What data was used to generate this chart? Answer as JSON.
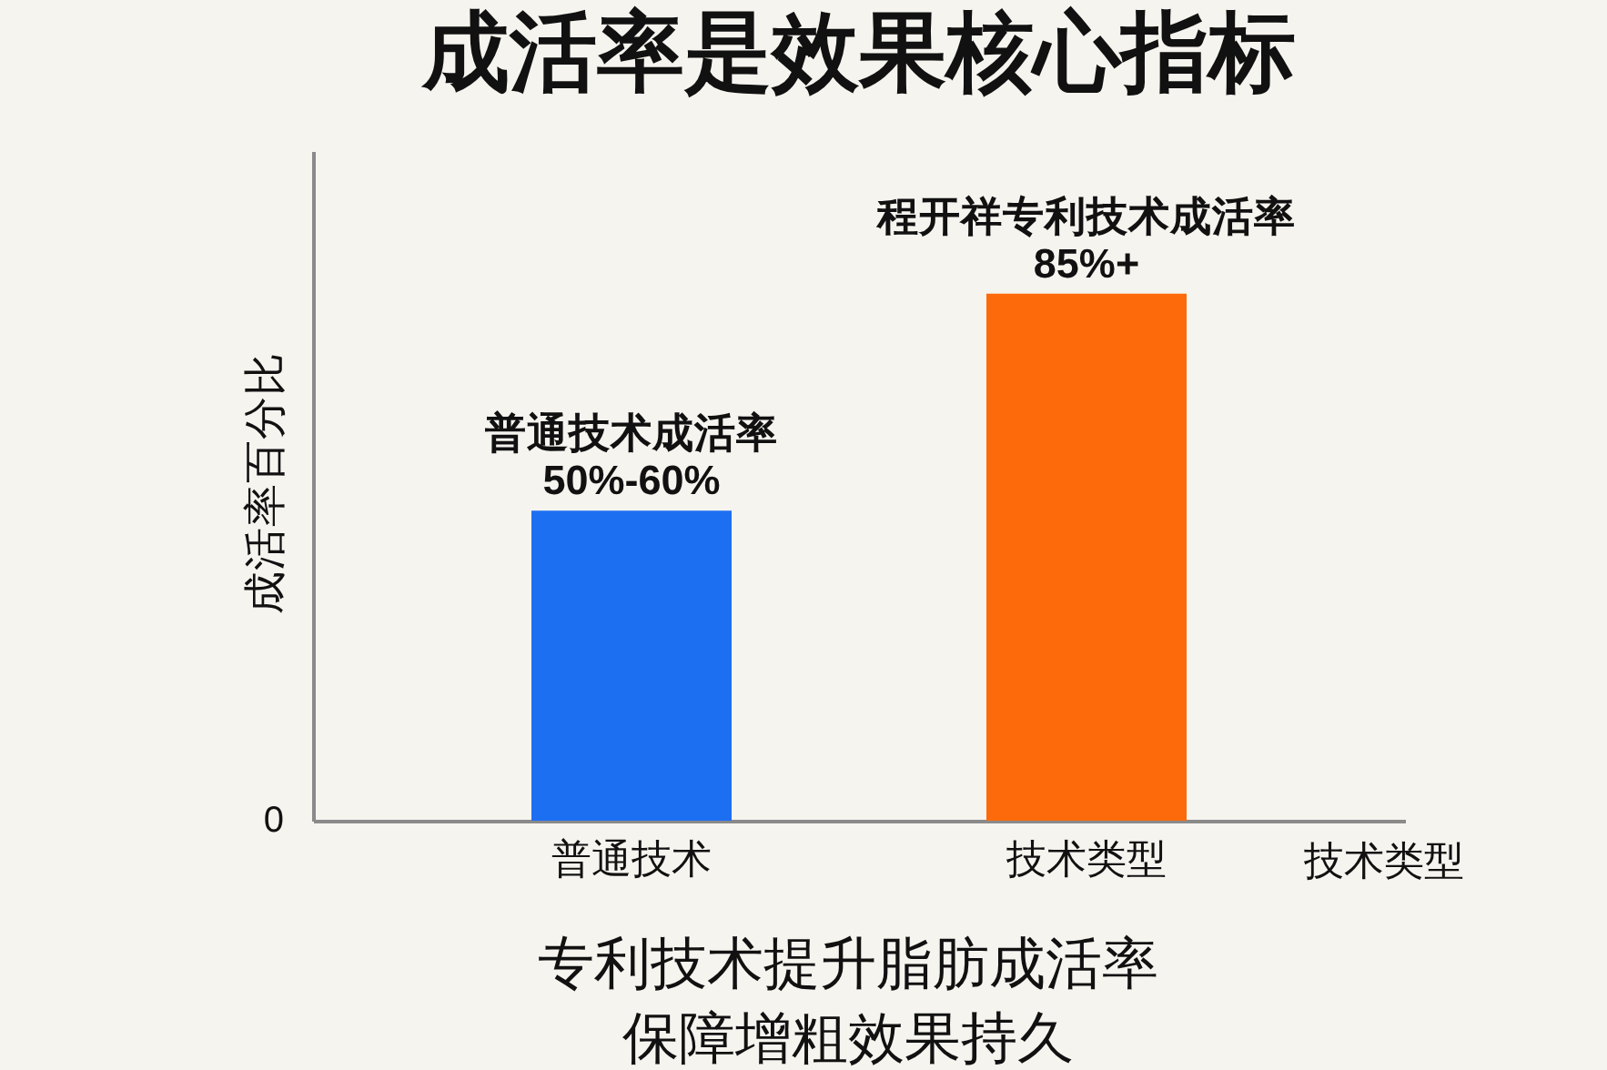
{
  "chart_data": {
    "type": "bar",
    "title": "成活率是效果核心指标",
    "xlabel": "技术类型",
    "ylabel": "成活率百分比",
    "categories": [
      "普通技术",
      "技术类型"
    ],
    "values": [
      50,
      85
    ],
    "colors": [
      "#1d6ff2",
      "#fd6a0b"
    ],
    "ylim": [
      0,
      108
    ],
    "value_labels": [
      "50%-60%",
      "85%+"
    ],
    "annotations": [
      {
        "text": "普通技术成活率",
        "x": "普通技术",
        "y": 50
      },
      {
        "text": "程开祥专利技术成活率",
        "x": "技术类型",
        "y": 85
      },
      "0",
      "专利技术提升脂肪成活率",
      "保障增粗效果持久"
    ]
  }
}
